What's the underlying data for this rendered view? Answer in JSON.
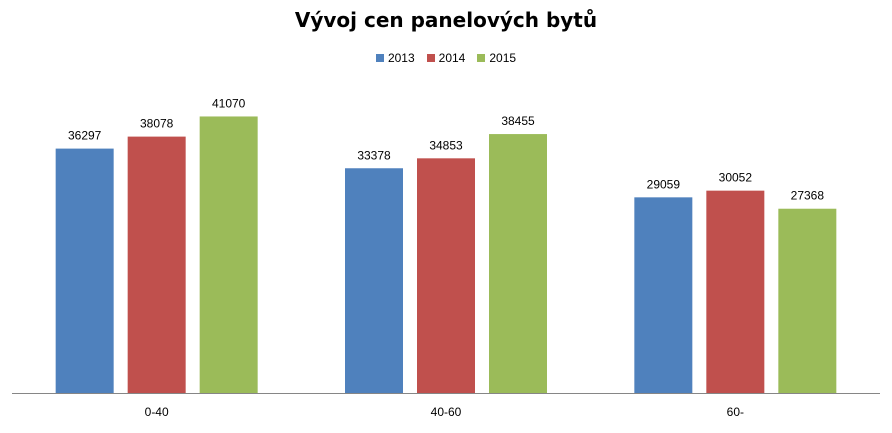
{
  "chart_data": {
    "type": "bar",
    "title": "Vývoj cen panelových bytů",
    "categories": [
      "0-40",
      "40-60",
      "60-"
    ],
    "series": [
      {
        "name": "2013",
        "color": "#4F81BD",
        "values": [
          36297,
          33378,
          29059
        ]
      },
      {
        "name": "2014",
        "color": "#C0504D",
        "values": [
          38078,
          34853,
          30052
        ]
      },
      {
        "name": "2015",
        "color": "#9BBB59",
        "values": [
          41070,
          38455,
          27368
        ]
      }
    ],
    "ylim": [
      0,
      45000
    ],
    "grid": false,
    "legend_position": "top",
    "xlabel": "",
    "ylabel": ""
  }
}
